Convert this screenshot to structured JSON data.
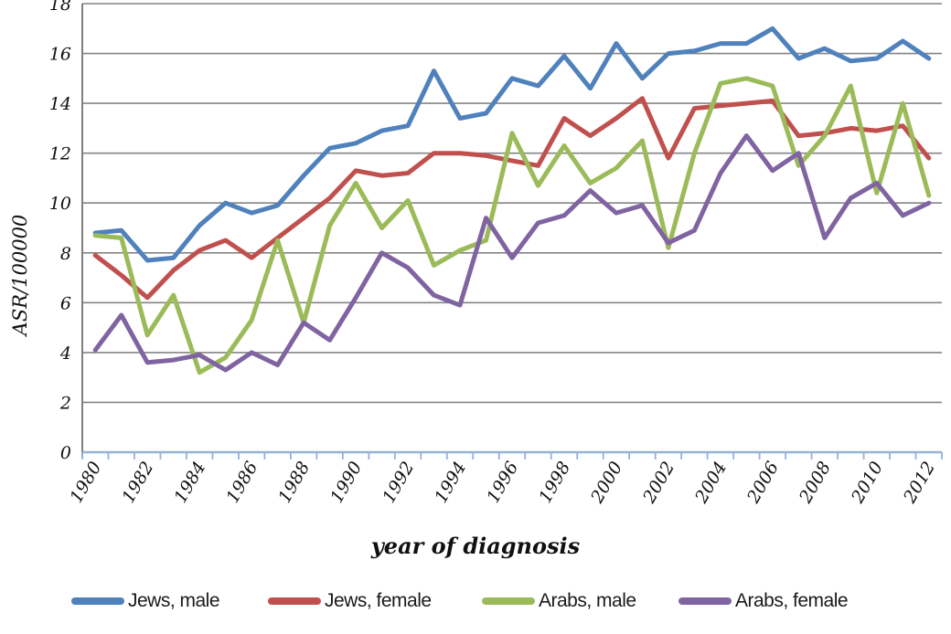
{
  "chart_data": {
    "type": "line",
    "title": "",
    "xlabel": "year of diagnosis",
    "ylabel": "ASR/100000",
    "x": [
      1980,
      1981,
      1982,
      1983,
      1984,
      1985,
      1986,
      1987,
      1988,
      1989,
      1990,
      1991,
      1992,
      1993,
      1994,
      1995,
      1996,
      1997,
      1998,
      1999,
      2000,
      2001,
      2002,
      2003,
      2004,
      2005,
      2006,
      2007,
      2008,
      2009,
      2010,
      2011,
      2012
    ],
    "x_tick_labels": [
      "1980",
      "1982",
      "1984",
      "1986",
      "1988",
      "1990",
      "1992",
      "1994",
      "1996",
      "1998",
      "2000",
      "2002",
      "2004",
      "2006",
      "2008",
      "2010",
      "2012"
    ],
    "y_tick_labels": [
      "0",
      "2",
      "4",
      "6",
      "8",
      "10",
      "12",
      "14",
      "16",
      "18"
    ],
    "ylim": [
      0,
      18
    ],
    "ytick_step": 2,
    "grid": "horizontal",
    "legend_position": "bottom",
    "gridline_color": "#848484",
    "x_axis_color": "#95B3D7",
    "y_axis_color": "#7f7f7f",
    "series": [
      {
        "name": "Jews, male",
        "color": "#4F81BD",
        "values": [
          8.8,
          8.9,
          7.7,
          7.8,
          9.1,
          10.0,
          9.6,
          9.9,
          11.1,
          12.2,
          12.4,
          12.9,
          13.1,
          15.3,
          13.4,
          13.6,
          15.0,
          14.7,
          15.9,
          14.6,
          16.4,
          15.0,
          16.0,
          16.1,
          16.4,
          16.4,
          17.0,
          15.8,
          16.2,
          15.7,
          15.8,
          16.5,
          15.8
        ]
      },
      {
        "name": "Jews, female",
        "color": "#C0504D",
        "values": [
          7.9,
          7.1,
          6.2,
          7.3,
          8.1,
          8.5,
          7.8,
          8.6,
          9.4,
          10.2,
          11.3,
          11.1,
          11.2,
          12.0,
          12.0,
          11.9,
          11.7,
          11.5,
          13.4,
          12.7,
          13.4,
          14.2,
          11.8,
          13.8,
          13.9,
          14.0,
          14.1,
          12.7,
          12.8,
          13.0,
          12.9,
          13.1,
          11.8
        ]
      },
      {
        "name": "Arabs, male",
        "color": "#9BBB59",
        "values": [
          8.7,
          8.6,
          4.7,
          6.3,
          3.2,
          3.8,
          5.3,
          8.5,
          5.2,
          9.1,
          10.8,
          9.0,
          10.1,
          7.5,
          8.1,
          8.5,
          12.8,
          10.7,
          12.3,
          10.8,
          11.4,
          12.5,
          8.2,
          12.0,
          14.8,
          15.0,
          14.7,
          11.5,
          12.7,
          14.7,
          10.4,
          14.0,
          10.3
        ]
      },
      {
        "name": "Arabs, female",
        "color": "#8064A2",
        "values": [
          4.1,
          5.5,
          3.6,
          3.7,
          3.9,
          3.3,
          4.0,
          3.5,
          5.2,
          4.5,
          6.2,
          8.0,
          7.4,
          6.3,
          5.9,
          9.4,
          7.8,
          9.2,
          9.5,
          10.5,
          9.6,
          9.9,
          8.4,
          8.9,
          11.2,
          12.7,
          11.3,
          12.0,
          8.6,
          10.2,
          10.8,
          9.5,
          10.0
        ]
      }
    ]
  }
}
